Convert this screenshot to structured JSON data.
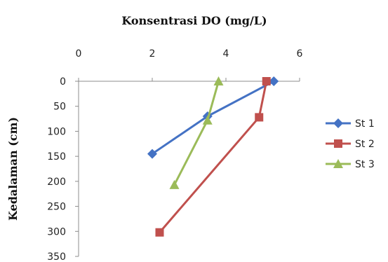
{
  "chart_data": {
    "type": "line",
    "title": "Konsentrasi DO (mg/L)",
    "ylabel": "Kedalaman (cm)",
    "xlabel": "",
    "xlim": [
      0,
      6
    ],
    "ylim": [
      0,
      350
    ],
    "y_inverted": true,
    "x_axis_position": "top",
    "x_ticks": [
      "0",
      "2",
      "4",
      "6"
    ],
    "y_ticks": [
      "0",
      "50",
      "100",
      "150",
      "200",
      "250",
      "300",
      "350"
    ],
    "grid": false,
    "legend_position": "right",
    "series": [
      {
        "name": "St 1",
        "color": "#4472C4",
        "marker": "diamond",
        "points": [
          {
            "x": 5.3,
            "y": 0
          },
          {
            "x": 3.5,
            "y": 70
          },
          {
            "x": 2.0,
            "y": 145
          }
        ]
      },
      {
        "name": "St 2",
        "color": "#C0504D",
        "marker": "square",
        "points": [
          {
            "x": 5.1,
            "y": 0
          },
          {
            "x": 4.9,
            "y": 72
          },
          {
            "x": 2.2,
            "y": 302
          }
        ]
      },
      {
        "name": "St 3",
        "color": "#9BBB59",
        "marker": "triangle",
        "points": [
          {
            "x": 3.8,
            "y": 0
          },
          {
            "x": 3.5,
            "y": 78
          },
          {
            "x": 2.6,
            "y": 207
          }
        ]
      }
    ]
  }
}
